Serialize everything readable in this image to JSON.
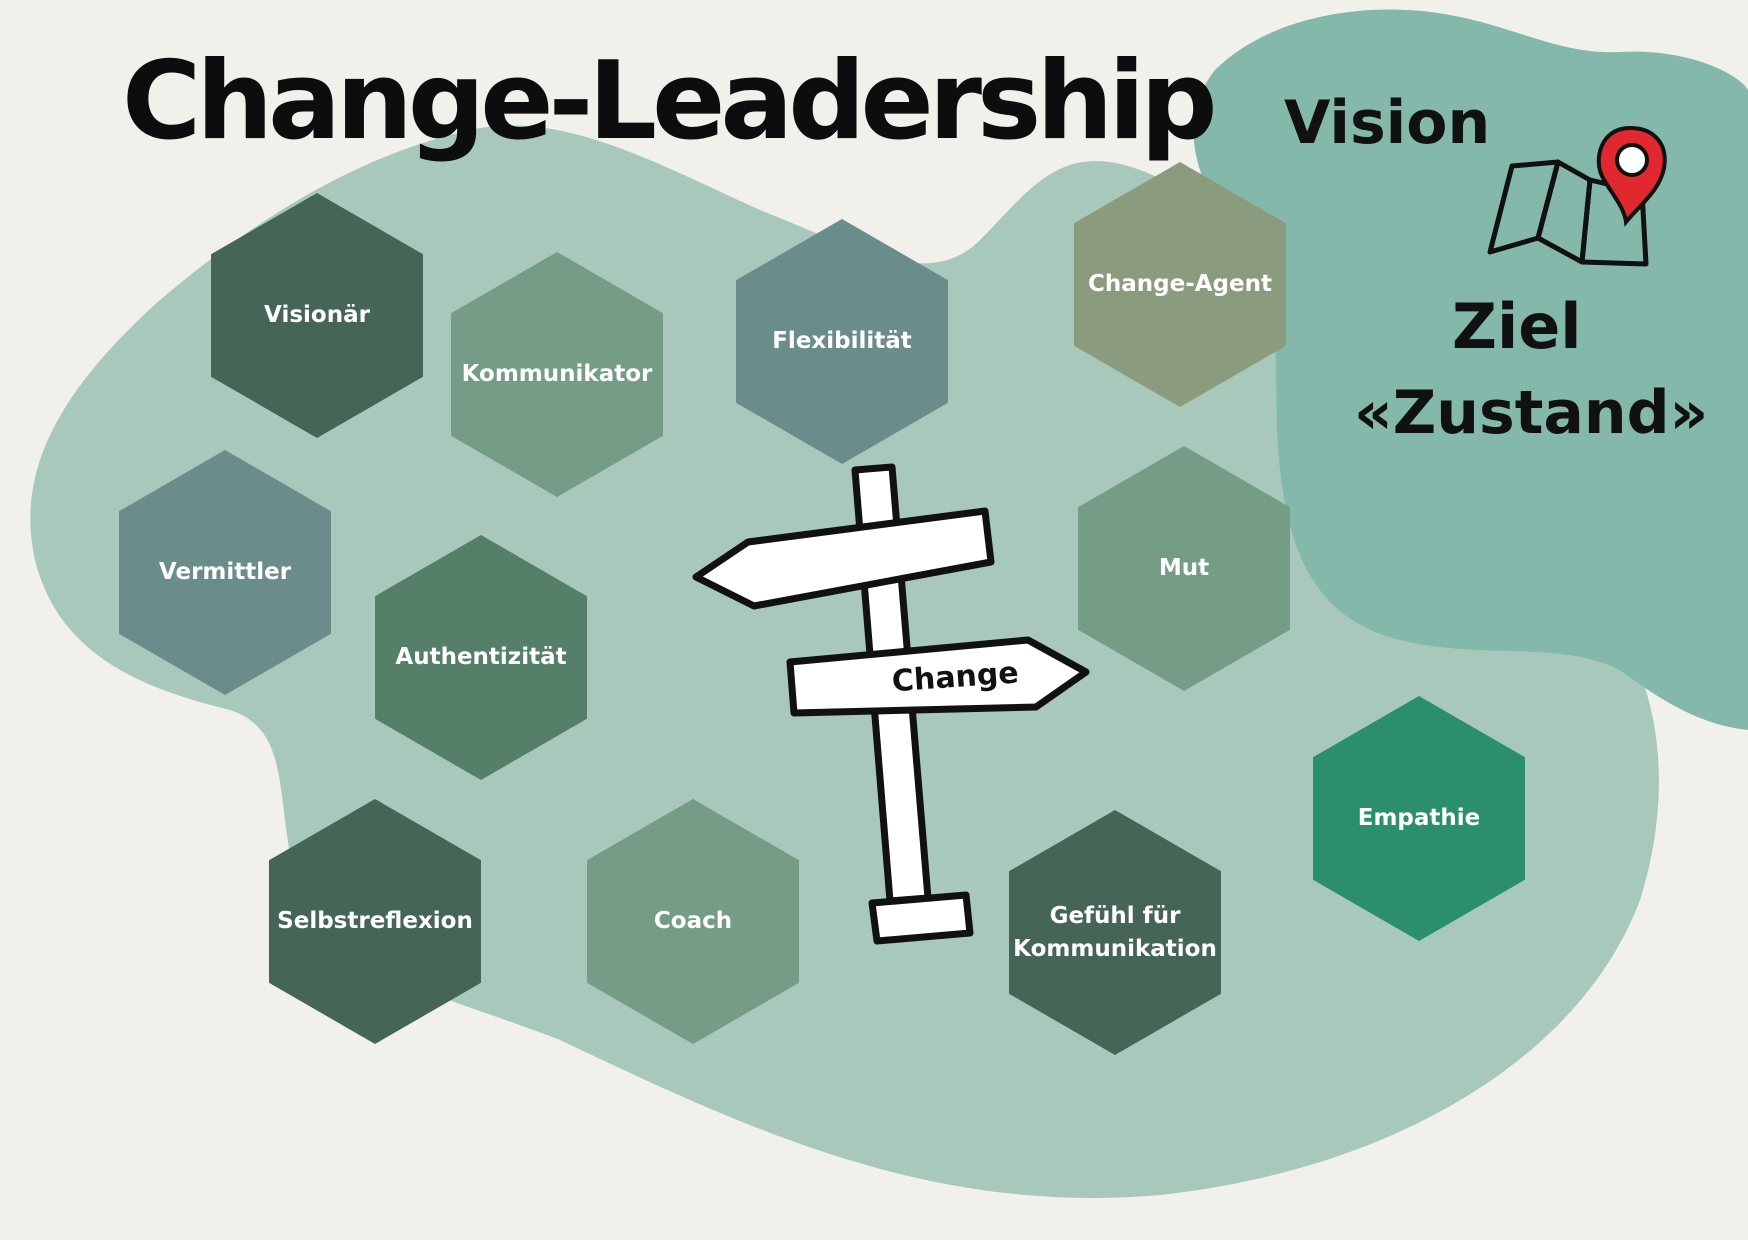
{
  "title": "Change-Leadership",
  "vision": {
    "heading": "Vision",
    "goal_line1": "Ziel",
    "goal_line2": "«Zustand»",
    "icon": "map-pin-icon"
  },
  "signpost": {
    "label": "Change",
    "icon": "signpost-icon"
  },
  "hexagons": [
    {
      "id": "visionaer",
      "label": "Visionär",
      "color": "#456656"
    },
    {
      "id": "kommunikator",
      "label": "Kommunikator",
      "color": "#749c87"
    },
    {
      "id": "flexibilitaet",
      "label": "Flexibilität",
      "color": "#6a8c8b"
    },
    {
      "id": "change-agent",
      "label": "Change-Agent",
      "color": "#8b9b7e"
    },
    {
      "id": "vermittler",
      "label": "Vermittler",
      "color": "#6a8c8b"
    },
    {
      "id": "authentizitaet",
      "label": "Authentizität",
      "color": "#557f69"
    },
    {
      "id": "mut",
      "label": "Mut",
      "color": "#749c87"
    },
    {
      "id": "empathie",
      "label": "Empathie",
      "color": "#2c8f6c"
    },
    {
      "id": "selbstreflexion",
      "label": "Selbstreflexion",
      "color": "#456656"
    },
    {
      "id": "coach",
      "label": "Coach",
      "color": "#749c87"
    },
    {
      "id": "gefuehl",
      "label": "Gefühl für\nKommunikation",
      "color": "#456656"
    }
  ],
  "colors": {
    "background": "#f2f0eb",
    "light_blob": "#a7c8ba",
    "vision_blob": "#83b8aa",
    "pin": "#e0282e"
  }
}
